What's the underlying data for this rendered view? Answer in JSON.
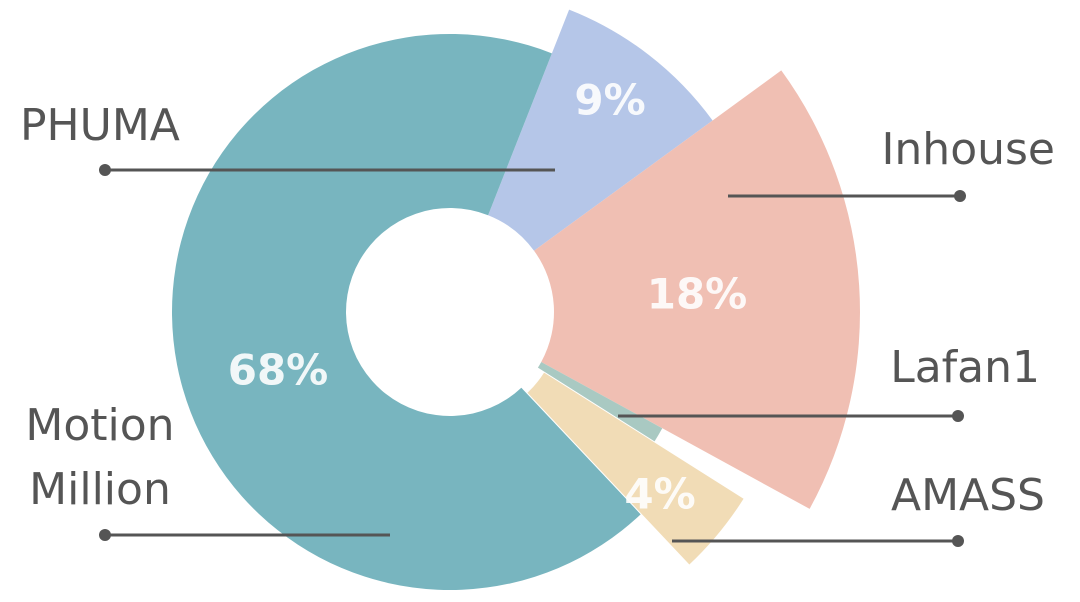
{
  "chart_data": {
    "type": "donut",
    "categories": [
      "PHUMA",
      "Inhouse",
      "Lafan1",
      "AMASS",
      "Motion Million"
    ],
    "values": [
      9,
      18,
      1,
      4,
      68
    ],
    "value_labels": [
      "9%",
      "18%",
      null,
      "4%",
      "68%"
    ],
    "colors": [
      "#b5c6e8",
      "#f0bfb3",
      "#a9c9c2",
      "#f1dcb6",
      "#78b5bf"
    ]
  }
}
